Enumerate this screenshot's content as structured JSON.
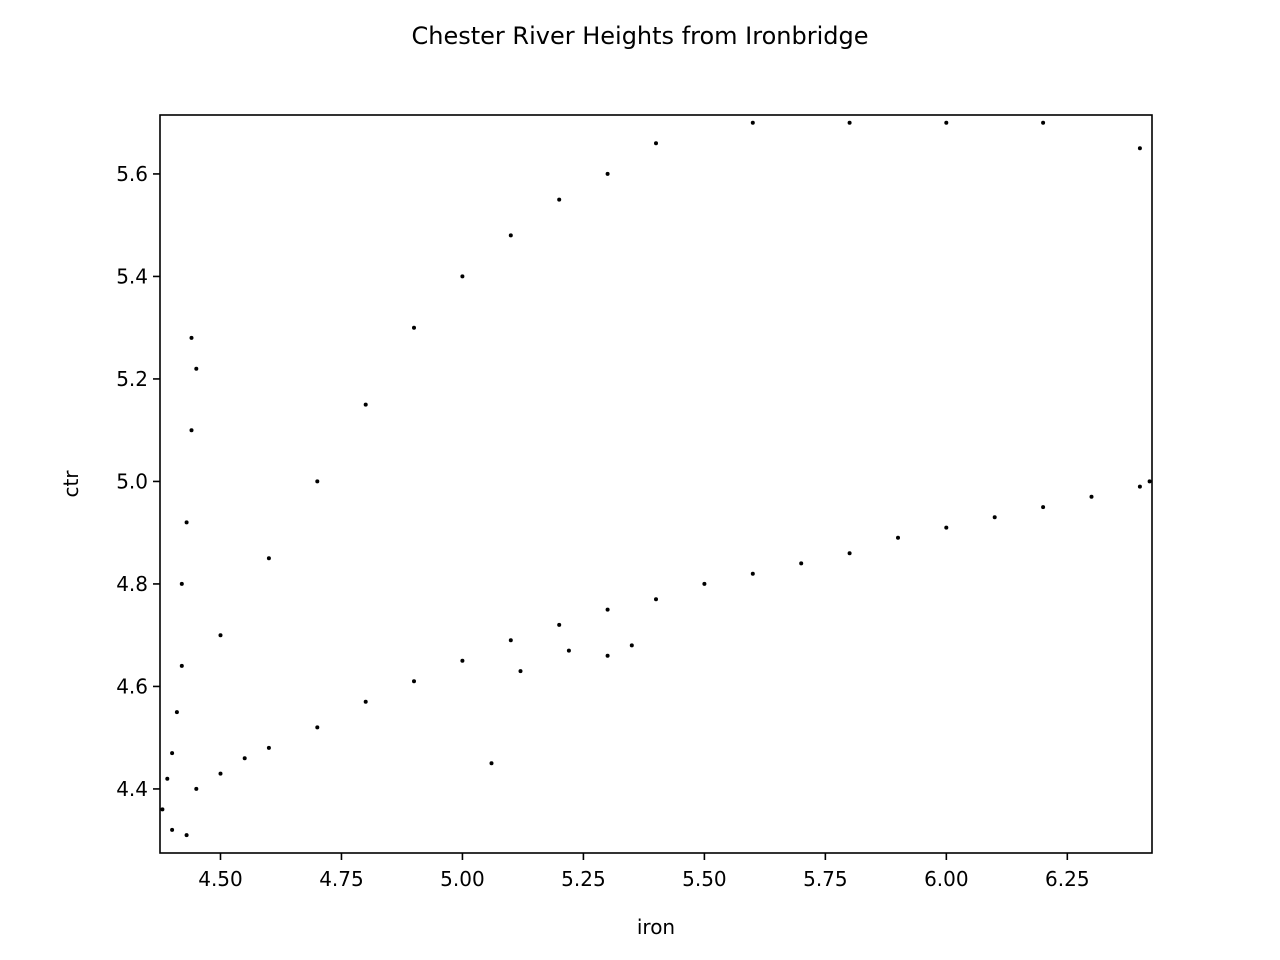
{
  "chart_data": {
    "type": "scatter",
    "title": "Chester River Heights from Ironbridge",
    "xlabel": "iron",
    "ylabel": "ctr",
    "xlim": [
      4.375,
      6.425
    ],
    "ylim": [
      4.275,
      5.715
    ],
    "xticks": [
      4.5,
      4.75,
      5.0,
      5.25,
      5.5,
      5.75,
      6.0,
      6.25
    ],
    "xtick_labels": [
      "4.50",
      "4.75",
      "5.00",
      "5.25",
      "5.50",
      "5.75",
      "6.00",
      "6.25"
    ],
    "yticks": [
      4.4,
      4.6,
      4.8,
      5.0,
      5.2,
      5.4,
      5.6
    ],
    "ytick_labels": [
      "4.4",
      "4.6",
      "4.8",
      "5.0",
      "5.2",
      "5.4",
      "5.6"
    ],
    "grid": false,
    "marker_color": "#000000",
    "series": [
      {
        "points": [
          [
            4.38,
            4.36
          ],
          [
            4.39,
            4.42
          ],
          [
            4.4,
            4.47
          ],
          [
            4.41,
            4.55
          ],
          [
            4.42,
            4.64
          ],
          [
            4.42,
            4.8
          ],
          [
            4.43,
            4.92
          ],
          [
            4.44,
            5.1
          ],
          [
            4.45,
            5.22
          ],
          [
            4.44,
            5.28
          ],
          [
            4.4,
            4.32
          ],
          [
            4.43,
            4.31
          ],
          [
            4.45,
            4.4
          ],
          [
            4.5,
            4.43
          ],
          [
            4.55,
            4.46
          ],
          [
            4.6,
            4.48
          ],
          [
            4.7,
            4.52
          ],
          [
            4.8,
            4.57
          ],
          [
            4.9,
            4.61
          ],
          [
            5.0,
            4.65
          ],
          [
            5.1,
            4.69
          ],
          [
            5.2,
            4.72
          ],
          [
            5.3,
            4.75
          ],
          [
            5.4,
            4.77
          ],
          [
            5.5,
            4.8
          ],
          [
            5.6,
            4.82
          ],
          [
            5.7,
            4.84
          ],
          [
            5.8,
            4.86
          ],
          [
            5.9,
            4.89
          ],
          [
            6.0,
            4.91
          ],
          [
            6.1,
            4.93
          ],
          [
            6.2,
            4.95
          ],
          [
            6.3,
            4.97
          ],
          [
            6.4,
            4.99
          ],
          [
            6.42,
            5.0
          ],
          [
            4.5,
            4.7
          ],
          [
            4.6,
            4.85
          ],
          [
            4.7,
            5.0
          ],
          [
            4.8,
            5.15
          ],
          [
            4.9,
            5.3
          ],
          [
            5.0,
            5.4
          ],
          [
            5.1,
            5.48
          ],
          [
            5.2,
            5.55
          ],
          [
            5.3,
            5.6
          ],
          [
            5.4,
            5.66
          ],
          [
            5.6,
            5.7
          ],
          [
            5.8,
            5.7
          ],
          [
            6.0,
            5.7
          ],
          [
            6.2,
            5.7
          ],
          [
            6.4,
            5.65
          ],
          [
            5.06,
            4.45
          ],
          [
            5.12,
            4.63
          ],
          [
            5.22,
            4.67
          ],
          [
            5.3,
            4.66
          ],
          [
            5.35,
            4.68
          ]
        ]
      }
    ]
  }
}
